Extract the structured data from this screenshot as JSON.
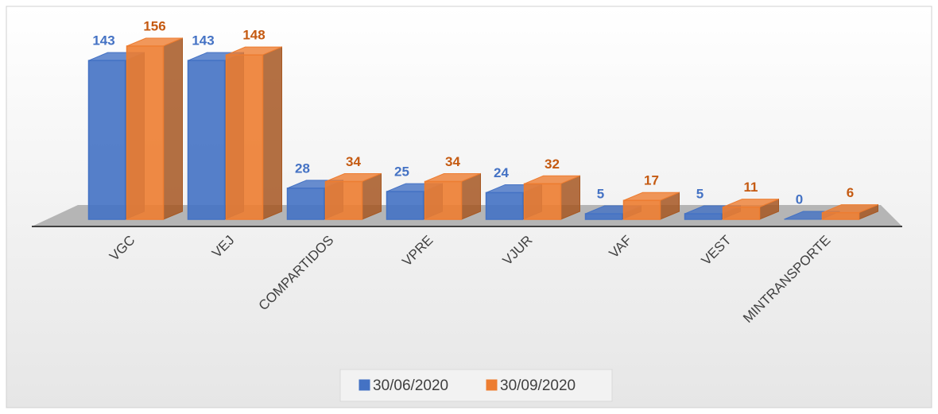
{
  "chart_data": {
    "type": "bar3d",
    "categories": [
      "VGC",
      "VEJ",
      "COMPARTIDOS",
      "VPRE",
      "VJUR",
      "VAF",
      "VEST",
      "MINTRANSPORTE"
    ],
    "series": [
      {
        "name": "30/06/2020",
        "color": "#4472c4",
        "label_color": "#4472c4",
        "values": [
          143,
          143,
          28,
          25,
          24,
          5,
          5,
          0
        ]
      },
      {
        "name": "30/09/2020",
        "color": "#ed7d31",
        "label_color": "#c55a11",
        "values": [
          156,
          148,
          34,
          34,
          32,
          17,
          11,
          6
        ]
      }
    ],
    "legend": "bottom"
  }
}
